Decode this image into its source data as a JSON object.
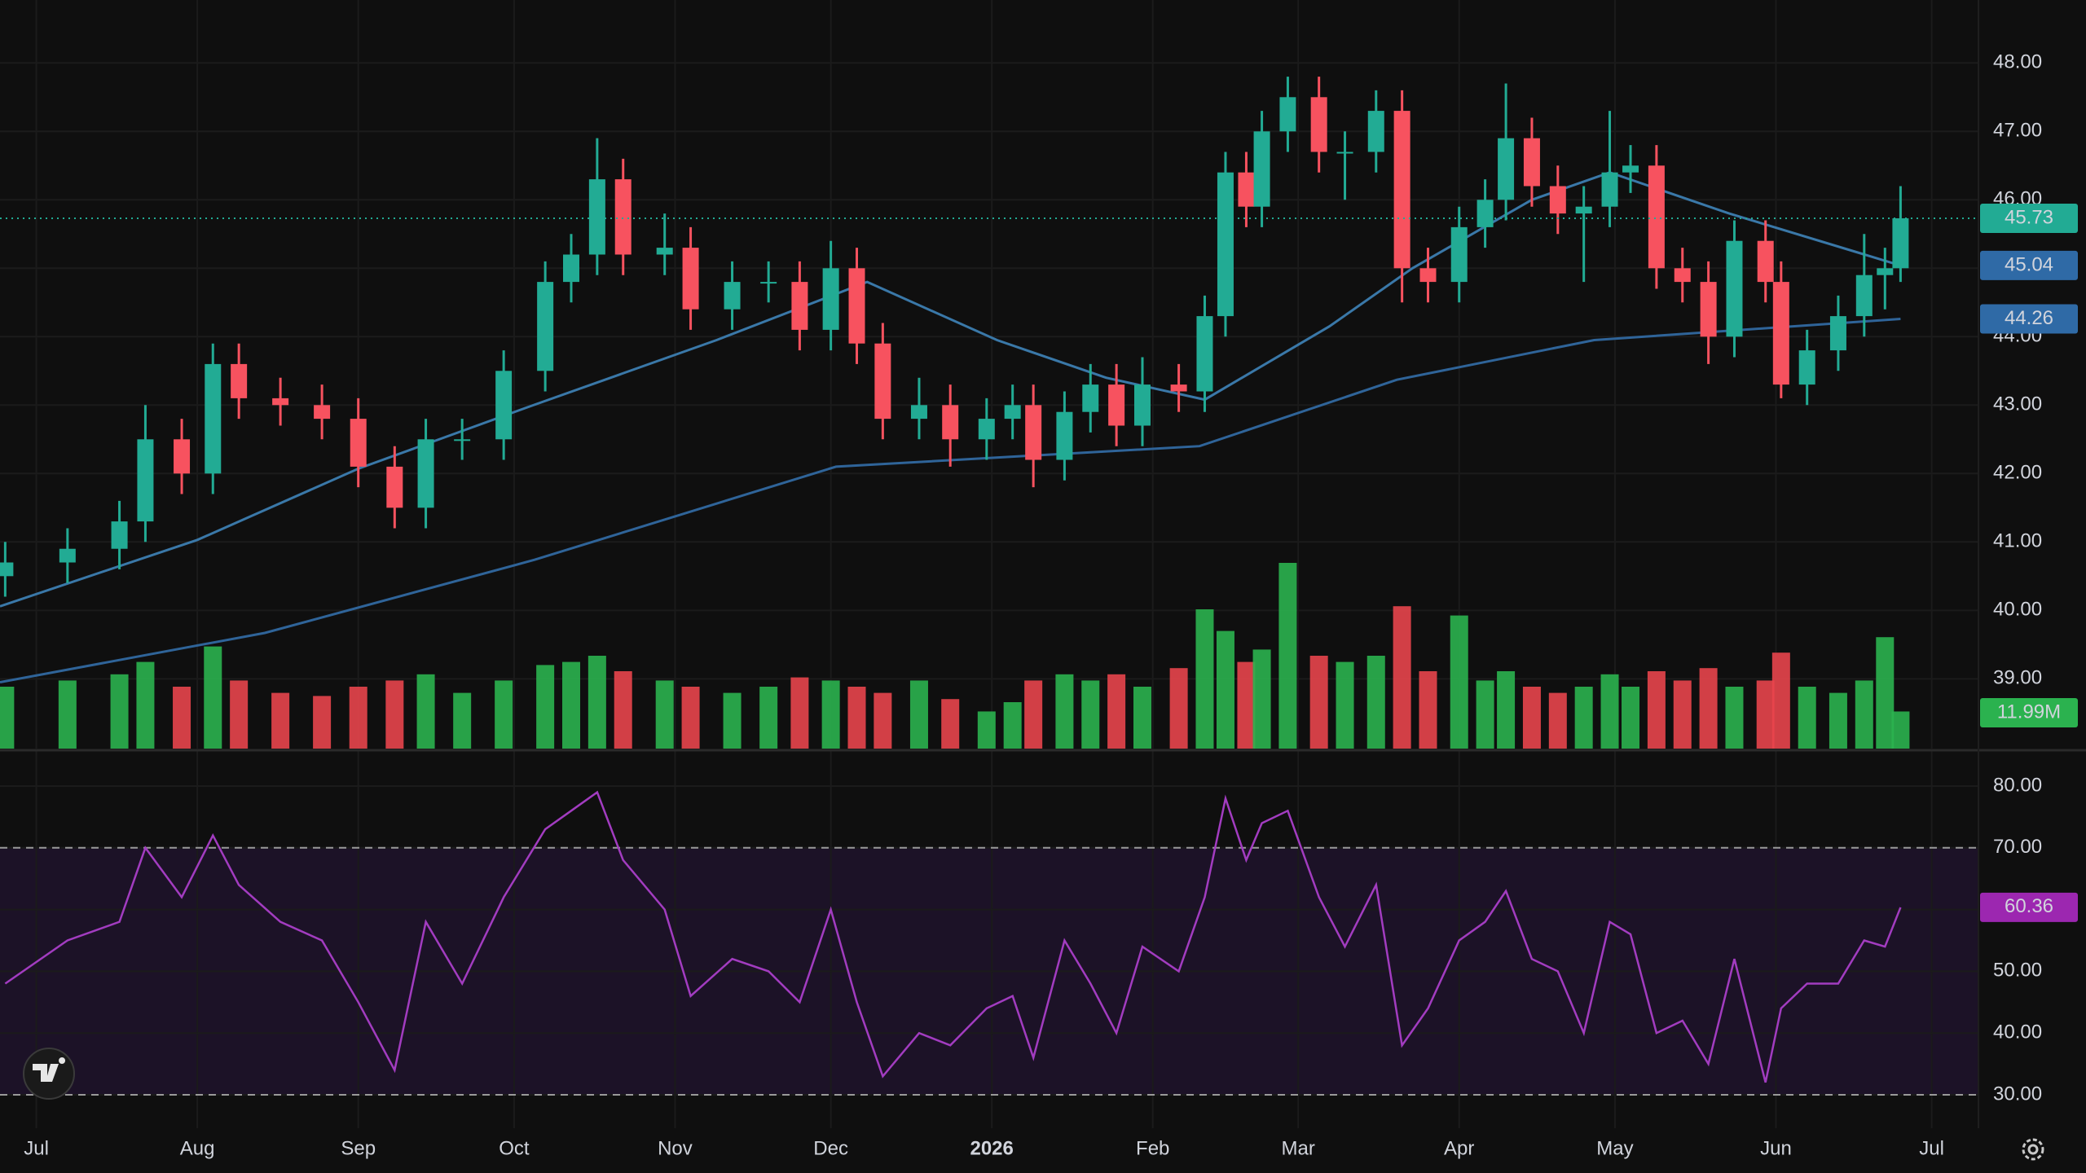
{
  "chart_data": {
    "type": "candlestick",
    "x": [
      -6,
      6,
      16,
      21,
      28,
      34,
      39,
      47,
      55,
      62,
      69,
      75,
      82,
      90,
      98,
      103,
      108,
      113,
      121,
      126,
      134,
      141,
      147,
      153,
      158,
      163,
      170,
      176,
      183,
      188,
      192,
      198,
      203,
      208,
      213,
      220,
      225,
      229,
      233,
      236,
      241,
      247,
      252,
      258,
      263,
      268,
      274,
      279,
      283,
      288,
      293,
      298,
      303,
      307,
      312,
      317,
      322,
      327,
      333,
      336,
      341,
      347,
      352,
      356,
      359
    ],
    "open": [
      40.5,
      40.7,
      40.9,
      41.3,
      42.5,
      42.0,
      43.6,
      43.1,
      43.0,
      42.8,
      42.1,
      41.5,
      42.5,
      42.5,
      43.5,
      44.8,
      45.2,
      46.3,
      45.2,
      45.3,
      44.4,
      44.8,
      44.8,
      44.1,
      45.0,
      43.9,
      42.8,
      43.0,
      42.5,
      42.8,
      43.0,
      42.2,
      42.9,
      43.3,
      42.7,
      43.3,
      43.2,
      44.3,
      46.4,
      45.9,
      47.0,
      47.5,
      46.7,
      46.7,
      47.3,
      45.0,
      44.8,
      45.6,
      46.0,
      46.9,
      46.2,
      45.8,
      45.9,
      46.4,
      46.5,
      45.0,
      44.8,
      44.0,
      45.4,
      44.8,
      43.3,
      43.8,
      44.3,
      44.9,
      45.0
    ],
    "high": [
      41.0,
      41.2,
      41.6,
      43.0,
      42.8,
      43.9,
      43.9,
      43.4,
      43.3,
      43.1,
      42.4,
      42.8,
      42.8,
      43.8,
      45.1,
      45.5,
      46.9,
      46.6,
      45.8,
      45.6,
      45.1,
      45.1,
      45.1,
      45.4,
      45.3,
      44.2,
      43.4,
      43.3,
      43.1,
      43.3,
      43.3,
      43.2,
      43.6,
      43.6,
      43.7,
      43.6,
      44.6,
      46.7,
      46.7,
      47.3,
      47.8,
      47.8,
      47.0,
      47.6,
      47.6,
      45.3,
      45.9,
      46.3,
      47.7,
      47.2,
      46.5,
      46.2,
      47.3,
      46.8,
      46.8,
      45.3,
      45.1,
      45.7,
      45.7,
      45.1,
      44.1,
      44.6,
      45.5,
      45.3,
      46.2
    ],
    "low": [
      40.2,
      40.4,
      40.6,
      41.0,
      41.7,
      41.7,
      42.8,
      42.7,
      42.5,
      41.8,
      41.2,
      41.2,
      42.2,
      42.2,
      43.2,
      44.5,
      44.9,
      44.9,
      44.9,
      44.1,
      44.1,
      44.5,
      43.8,
      43.8,
      43.6,
      42.5,
      42.5,
      42.1,
      42.2,
      42.5,
      41.8,
      41.9,
      42.6,
      42.4,
      42.4,
      42.9,
      42.9,
      44.0,
      45.6,
      45.6,
      46.7,
      46.4,
      46.0,
      46.4,
      44.5,
      44.5,
      44.5,
      45.3,
      45.7,
      45.9,
      45.5,
      44.8,
      45.6,
      46.1,
      44.7,
      44.5,
      43.6,
      43.7,
      44.5,
      43.1,
      43.0,
      43.5,
      44.0,
      44.4,
      44.8
    ],
    "close": [
      40.7,
      40.9,
      41.3,
      42.5,
      42.0,
      43.6,
      43.1,
      43.0,
      42.8,
      42.1,
      41.5,
      42.5,
      42.5,
      43.5,
      44.8,
      45.2,
      46.3,
      45.2,
      45.3,
      44.4,
      44.8,
      44.8,
      44.1,
      45.0,
      43.9,
      42.8,
      43.0,
      42.5,
      42.8,
      43.0,
      42.2,
      42.9,
      43.3,
      42.7,
      43.3,
      43.2,
      44.3,
      46.4,
      45.9,
      47.0,
      47.5,
      46.7,
      46.7,
      47.3,
      45.0,
      44.8,
      45.6,
      46.0,
      46.9,
      46.2,
      45.8,
      45.9,
      46.4,
      46.5,
      45.0,
      44.8,
      44.0,
      45.4,
      44.8,
      43.3,
      43.8,
      44.3,
      44.9,
      45.0,
      45.73
    ],
    "up_color": "#22ab94",
    "down_color": "#f7525f",
    "xlim": [
      -7,
      374
    ],
    "xticks": [
      {
        "value": 0,
        "label": "Jul"
      },
      {
        "value": 31,
        "label": "Aug"
      },
      {
        "value": 62,
        "label": "Sep"
      },
      {
        "value": 92,
        "label": "Oct"
      },
      {
        "value": 123,
        "label": "Nov"
      },
      {
        "value": 153,
        "label": "Dec"
      },
      {
        "value": 184,
        "label": "2026"
      },
      {
        "value": 215,
        "label": "Feb"
      },
      {
        "value": 243,
        "label": "Mar"
      },
      {
        "value": 274,
        "label": "Apr"
      },
      {
        "value": 304,
        "label": "May"
      },
      {
        "value": 335,
        "label": "Jun"
      },
      {
        "value": 365,
        "label": "Jul"
      }
    ],
    "ylim": [
      37.98,
      48.92
    ],
    "yticks": [
      {
        "value": 39,
        "label": "39.00"
      },
      {
        "value": 40,
        "label": "40.00"
      },
      {
        "value": 41,
        "label": "41.00"
      },
      {
        "value": 42,
        "label": "42.00"
      },
      {
        "value": 43,
        "label": "43.00"
      },
      {
        "value": 44,
        "label": "44.00"
      },
      {
        "value": 45,
        "label": "45.00"
      },
      {
        "value": 46,
        "label": "46.00"
      },
      {
        "value": 47,
        "label": "47.00"
      },
      {
        "value": 48,
        "label": "48.00"
      }
    ],
    "grid": true,
    "moving_averages": [
      {
        "color": "#3a78a8",
        "x": [
          -7,
          31,
          62,
          95,
          131,
          160,
          185,
          206,
          225,
          249,
          265,
          288,
          303,
          326,
          359
        ],
        "values": [
          40.06,
          41.03,
          42.07,
          42.98,
          43.95,
          44.8,
          43.95,
          43.4,
          43.08,
          44.15,
          45.0,
          46.0,
          46.4,
          45.8,
          45.04
        ]
      },
      {
        "color": "#2f6499",
        "x": [
          -7,
          44,
          96,
          154,
          224,
          262,
          300,
          359
        ],
        "values": [
          38.95,
          39.67,
          40.74,
          42.1,
          42.4,
          43.37,
          43.95,
          44.26
        ]
      }
    ],
    "volume": {
      "values": [
        20,
        22,
        24,
        28,
        20,
        33,
        22,
        18,
        17,
        20,
        22,
        24,
        18,
        22,
        27,
        28,
        30,
        25,
        22,
        20,
        18,
        20,
        23,
        22,
        20,
        18,
        22,
        16,
        12,
        15,
        22,
        24,
        22,
        24,
        20,
        26,
        45,
        38,
        28,
        32,
        60,
        30,
        28,
        30,
        46,
        25,
        43,
        22,
        25,
        20,
        18,
        20,
        24,
        20,
        25,
        22,
        26,
        20,
        22,
        31,
        20,
        18,
        22,
        36,
        11.99
      ],
      "last_value_label": "11.99M",
      "up_color": "#2bb24f",
      "down_color": "#e8454c"
    },
    "rsi": {
      "values": [
        48,
        55,
        58,
        70,
        62,
        72,
        64,
        58,
        55,
        45,
        34,
        58,
        48,
        62,
        73,
        76,
        79,
        68,
        60,
        46,
        52,
        50,
        45,
        60,
        45,
        33,
        40,
        38,
        44,
        46,
        36,
        55,
        48,
        40,
        54,
        50,
        62,
        78,
        68,
        74,
        76,
        62,
        54,
        64,
        38,
        44,
        55,
        58,
        63,
        52,
        50,
        40,
        58,
        56,
        40,
        42,
        35,
        52,
        32,
        44,
        48,
        48,
        55,
        54,
        60.36
      ],
      "color": "#a23cc0",
      "ylim": [
        24.59,
        85.67
      ],
      "yticks": [
        {
          "value": 30,
          "label": "30.00"
        },
        {
          "value": 40,
          "label": "40.00"
        },
        {
          "value": 50,
          "label": "50.00"
        },
        {
          "value": 60,
          "label": "60.00"
        },
        {
          "value": 70,
          "label": "70.00"
        },
        {
          "value": 80,
          "label": "80.00"
        }
      ],
      "band": [
        30,
        70
      ]
    }
  }
}
